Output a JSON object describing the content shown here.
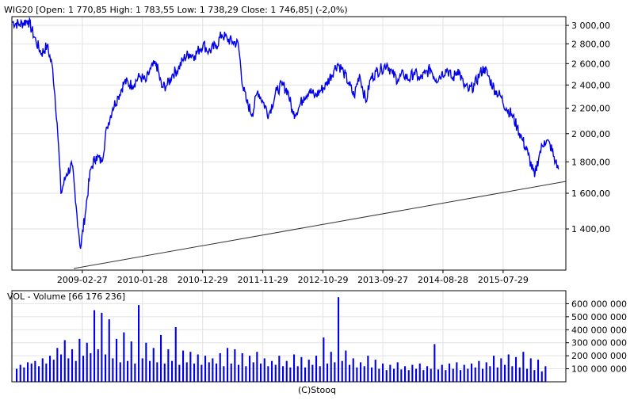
{
  "colors": {
    "price": "#0000ee",
    "volume": "#0000ee",
    "trendline": "#333333",
    "grid": "#e2e2e2"
  },
  "footer": "(C)Stooq",
  "chart_data": [
    {
      "type": "line",
      "title": "WIG20 [Open: 1 770,85  High: 1 783,55  Low: 1 738,29  Close: 1 746,85] (-2,0%)",
      "y_scale": "log",
      "ylim": [
        1200,
        3100
      ],
      "ytick_labels": [
        "3 000,00",
        "2 800,00",
        "2 600,00",
        "2 400,00",
        "2 200,00",
        "2 000,00",
        "1 800,00",
        "1 600,00",
        "1 400,00"
      ],
      "ytick_values": [
        3000,
        2800,
        2600,
        2400,
        2200,
        2000,
        1800,
        1600,
        1400
      ],
      "xtick_labels": [
        "2009-02-27",
        "2010-01-28",
        "2010-12-29",
        "2011-11-29",
        "2012-10-29",
        "2013-09-27",
        "2014-08-28",
        "2015-07-29"
      ],
      "grid": true,
      "series": [
        {
          "x": [
            "2008-02-01",
            "2008-03-15",
            "2008-05-01",
            "2008-06-15",
            "2008-07-15",
            "2008-08-15",
            "2008-09-15",
            "2008-10-10",
            "2008-10-31",
            "2008-12-01",
            "2009-01-01",
            "2009-01-20",
            "2009-02-17",
            "2009-03-15",
            "2009-04-15",
            "2009-05-15",
            "2009-06-15",
            "2009-07-15",
            "2009-08-15",
            "2009-09-15",
            "2009-10-20",
            "2009-12-01",
            "2010-01-15",
            "2010-02-15",
            "2010-03-15",
            "2010-04-15",
            "2010-05-15",
            "2010-06-15",
            "2010-07-15",
            "2010-08-15",
            "2010-09-15",
            "2010-10-15",
            "2010-11-15",
            "2011-01-01",
            "2011-02-01",
            "2011-03-15",
            "2011-04-15",
            "2011-05-15",
            "2011-06-15",
            "2011-07-15",
            "2011-08-10",
            "2011-09-01",
            "2011-10-01",
            "2011-11-01",
            "2011-12-01",
            "2012-01-01",
            "2012-02-15",
            "2012-03-15",
            "2012-04-15",
            "2012-05-15",
            "2012-06-15",
            "2012-07-15",
            "2012-08-15",
            "2012-09-15",
            "2012-10-15",
            "2012-11-15",
            "2013-01-01",
            "2013-01-20",
            "2013-02-20",
            "2013-03-20",
            "2013-04-20",
            "2013-05-20",
            "2013-06-25",
            "2013-07-20",
            "2013-08-20",
            "2013-09-20",
            "2013-10-20",
            "2013-11-20",
            "2013-12-20",
            "2014-01-20",
            "2014-02-20",
            "2014-03-20",
            "2014-04-20",
            "2014-05-20",
            "2014-06-20",
            "2014-07-20",
            "2014-08-20",
            "2014-09-20",
            "2014-10-20",
            "2014-11-20",
            "2014-12-20",
            "2015-01-20",
            "2015-02-20",
            "2015-03-20",
            "2015-04-15",
            "2015-05-15",
            "2015-06-15",
            "2015-07-15",
            "2015-08-15",
            "2015-09-15",
            "2015-10-15",
            "2015-11-15",
            "2015-12-15",
            "2016-01-20",
            "2016-02-15",
            "2016-03-15",
            "2016-04-15",
            "2016-05-15",
            "2016-06-01"
          ],
          "values": [
            3040,
            3010,
            3060,
            2820,
            2700,
            2780,
            2550,
            2080,
            1600,
            1720,
            1780,
            1550,
            1300,
            1480,
            1750,
            1840,
            1800,
            2050,
            2200,
            2300,
            2430,
            2400,
            2480,
            2430,
            2550,
            2600,
            2380,
            2400,
            2500,
            2550,
            2650,
            2700,
            2680,
            2800,
            2720,
            2780,
            2900,
            2850,
            2820,
            2800,
            2380,
            2250,
            2150,
            2350,
            2250,
            2150,
            2350,
            2400,
            2350,
            2150,
            2200,
            2300,
            2350,
            2300,
            2350,
            2400,
            2550,
            2600,
            2520,
            2420,
            2300,
            2500,
            2250,
            2450,
            2520,
            2550,
            2600,
            2500,
            2450,
            2500,
            2450,
            2520,
            2450,
            2500,
            2550,
            2450,
            2500,
            2550,
            2450,
            2550,
            2400,
            2350,
            2400,
            2500,
            2560,
            2450,
            2350,
            2300,
            2200,
            2150,
            2050,
            1950,
            1850,
            1700,
            1850,
            1950,
            1920,
            1800,
            1750
          ]
        }
      ]
    },
    {
      "type": "bar",
      "title": "VOL - Volume [66 176 236]",
      "ylim": [
        0,
        700000000
      ],
      "ytick_labels": [
        "600 000 000",
        "500 000 000",
        "400 000 000",
        "300 000 000",
        "200 000 000",
        "100 000 000"
      ],
      "ytick_values": [
        600000000,
        500000000,
        400000000,
        300000000,
        200000000,
        100000000
      ],
      "grid": true,
      "series": [
        {
          "values": [
            100000000,
            130000000,
            110000000,
            150000000,
            140000000,
            160000000,
            120000000,
            180000000,
            140000000,
            200000000,
            170000000,
            260000000,
            210000000,
            320000000,
            180000000,
            250000000,
            160000000,
            330000000,
            200000000,
            300000000,
            220000000,
            550000000,
            250000000,
            530000000,
            210000000,
            480000000,
            180000000,
            330000000,
            150000000,
            380000000,
            160000000,
            310000000,
            140000000,
            590000000,
            180000000,
            300000000,
            160000000,
            260000000,
            150000000,
            360000000,
            140000000,
            250000000,
            160000000,
            420000000,
            130000000,
            240000000,
            150000000,
            230000000,
            140000000,
            210000000,
            130000000,
            200000000,
            150000000,
            180000000,
            140000000,
            220000000,
            120000000,
            260000000,
            140000000,
            250000000,
            130000000,
            220000000,
            120000000,
            200000000,
            150000000,
            230000000,
            140000000,
            180000000,
            120000000,
            160000000,
            130000000,
            200000000,
            120000000,
            160000000,
            110000000,
            210000000,
            120000000,
            190000000,
            110000000,
            170000000,
            130000000,
            200000000,
            120000000,
            340000000,
            140000000,
            230000000,
            150000000,
            650000000,
            160000000,
            240000000,
            130000000,
            180000000,
            110000000,
            150000000,
            120000000,
            200000000,
            110000000,
            170000000,
            100000000,
            140000000,
            90000000,
            130000000,
            100000000,
            150000000,
            95000000,
            120000000,
            90000000,
            130000000,
            100000000,
            140000000,
            90000000,
            120000000,
            100000000,
            290000000,
            95000000,
            130000000,
            90000000,
            140000000,
            100000000,
            150000000,
            90000000,
            130000000,
            100000000,
            140000000,
            110000000,
            160000000,
            100000000,
            150000000,
            120000000,
            200000000,
            110000000,
            180000000,
            130000000,
            210000000,
            120000000,
            190000000,
            110000000,
            230000000,
            100000000,
            180000000,
            90000000,
            170000000,
            80000000,
            120000000
          ]
        }
      ]
    }
  ]
}
